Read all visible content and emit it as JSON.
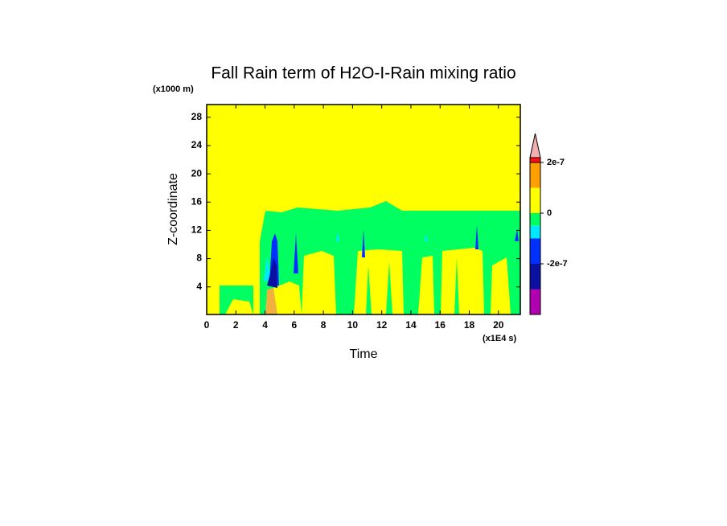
{
  "chart_data": {
    "type": "contour",
    "title": "Fall Rain term of H2O-I-Rain mixing ratio",
    "x_label": "Time",
    "y_label": "Z-coordinate",
    "x_unit": "(x1E4 s)",
    "y_unit": "(x1000 m)",
    "xlim": [
      0,
      21.5
    ],
    "xticks": [
      0,
      2,
      4,
      6,
      8,
      10,
      12,
      14,
      16,
      18,
      20
    ],
    "ylim": [
      0.1,
      29.8
    ],
    "yticks": [
      4,
      8,
      12,
      16,
      20,
      24,
      28
    ],
    "background_color": "#ffff00",
    "colorbar": {
      "levels": [
        -4e-07,
        -3e-07,
        -2e-07,
        -1e-07,
        -5e-08,
        0,
        1e-07,
        2e-07
      ],
      "colors": [
        "#b000b0",
        "#0a10a0",
        "#0030ff",
        "#00e8ff",
        "#00ff60",
        "#ffff00",
        "#ffa000"
      ],
      "over_colors": [
        "#ff1010",
        "#f4b0b0"
      ],
      "ticks": [
        {
          "value": 2e-07,
          "label": "2e-7"
        },
        0,
        {
          "value": -2e-07,
          "label": "-2e-7"
        }
      ]
    }
  }
}
